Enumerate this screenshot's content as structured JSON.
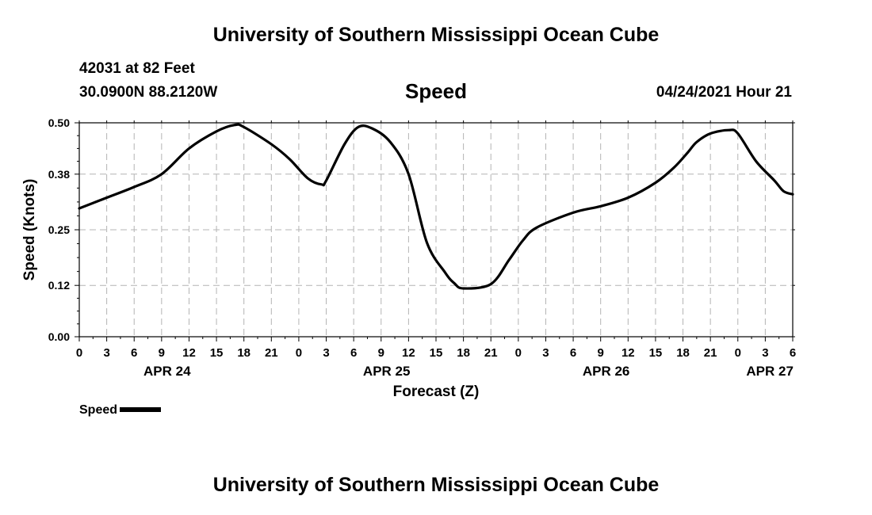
{
  "header": {
    "title": "University of Southern Mississippi Ocean Cube",
    "station": "42031 at 82 Feet",
    "coords": "30.0900N  88.2120W",
    "variable": "Speed",
    "datetime": "04/24/2021 Hour 21"
  },
  "footer": {
    "title": "University of Southern Mississippi Ocean Cube"
  },
  "legend": {
    "label": "Speed"
  },
  "chart_data": {
    "type": "line",
    "title": "Speed",
    "xlabel": "Forecast (Z)",
    "ylabel": "Speed (Knots)",
    "xlim": [
      0,
      78
    ],
    "ylim": [
      0,
      0.5
    ],
    "yticks": [
      0.0,
      0.12,
      0.25,
      0.38,
      0.5
    ],
    "ytick_labels": [
      "0.00",
      "0.12",
      "0.25",
      "0.38",
      "0.50"
    ],
    "xticks": [
      0,
      3,
      6,
      9,
      12,
      15,
      18,
      21,
      24,
      27,
      30,
      33,
      36,
      39,
      42,
      45,
      48,
      51,
      54,
      57,
      60,
      63,
      66,
      69,
      72,
      75,
      78
    ],
    "xtick_labels": [
      "0",
      "3",
      "6",
      "9",
      "12",
      "15",
      "18",
      "21",
      "0",
      "3",
      "6",
      "9",
      "12",
      "15",
      "18",
      "21",
      "0",
      "3",
      "6",
      "9",
      "12",
      "15",
      "18",
      "21",
      "0",
      "3",
      "6"
    ],
    "date_labels": [
      {
        "x": 9.6,
        "label": "APR 24"
      },
      {
        "x": 33.6,
        "label": "APR 25"
      },
      {
        "x": 57.6,
        "label": "APR 26"
      },
      {
        "x": 75.5,
        "label": "APR 27"
      }
    ],
    "grid": true,
    "line_color": "#000000",
    "series": [
      {
        "name": "Speed",
        "x": [
          0,
          3,
          6,
          9,
          12,
          15,
          17,
          18,
          21,
          23,
          25,
          26.5,
          27,
          29,
          30.5,
          32,
          34,
          36,
          38,
          40,
          41,
          42,
          45,
          47,
          48.5,
          50,
          54,
          57,
          60,
          63,
          65,
          66.5,
          67.5,
          69,
          71,
          72,
          74,
          76,
          77,
          78
        ],
        "y": [
          0.3,
          0.325,
          0.35,
          0.38,
          0.44,
          0.48,
          0.495,
          0.49,
          0.45,
          0.415,
          0.37,
          0.356,
          0.365,
          0.45,
          0.49,
          0.487,
          0.455,
          0.38,
          0.22,
          0.15,
          0.125,
          0.113,
          0.123,
          0.18,
          0.225,
          0.255,
          0.29,
          0.305,
          0.325,
          0.36,
          0.395,
          0.43,
          0.455,
          0.475,
          0.483,
          0.475,
          0.41,
          0.365,
          0.34,
          0.333
        ]
      }
    ]
  }
}
